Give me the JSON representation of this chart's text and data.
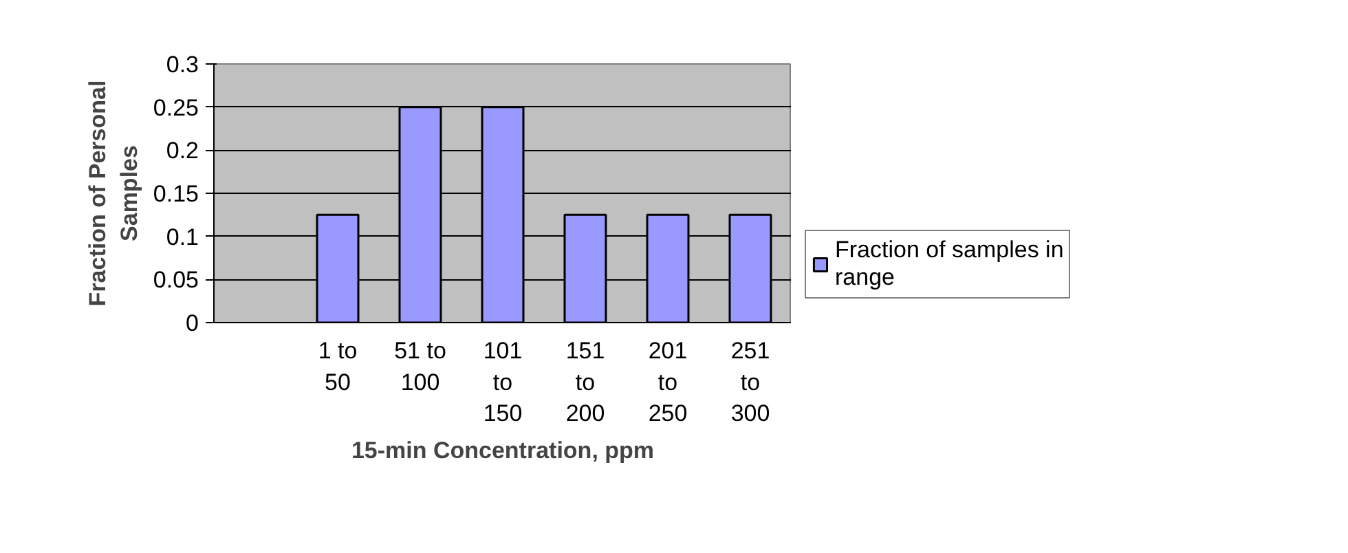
{
  "chart_data": {
    "type": "bar",
    "xlabel": "15-min Concentration, ppm",
    "ylabel": "Fraction of Personal Samples",
    "categories": [
      null,
      "1 to 50",
      "51 to 100",
      "101 to 150",
      "151 to 200",
      "201 to 250",
      "251 to 300"
    ],
    "series": [
      {
        "name": "Fraction of samples in range",
        "color": "#9999ff",
        "values": [
          null,
          0.125,
          0.25,
          0.25,
          0.125,
          0.125,
          0.125
        ]
      }
    ],
    "ylim": [
      0,
      0.3
    ],
    "yticks": [
      0,
      0.05,
      0.1,
      0.15,
      0.2,
      0.25,
      0.3
    ],
    "grid": "y",
    "legend": "right"
  }
}
